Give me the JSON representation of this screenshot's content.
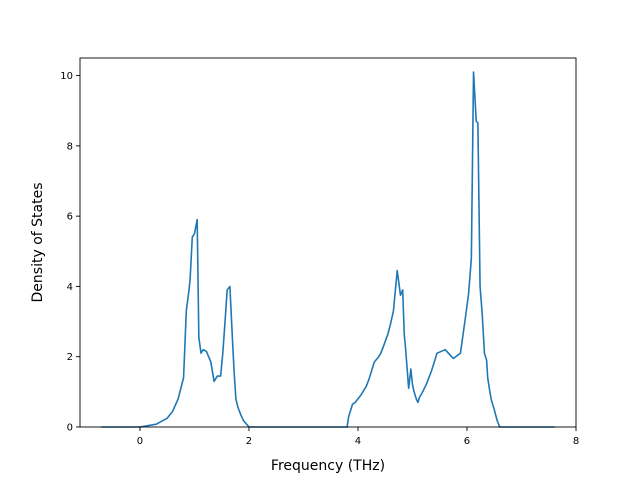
{
  "chart_data": {
    "type": "line",
    "title": "",
    "xlabel": "Frequency (THz)",
    "ylabel": "Density of States",
    "xlim": [
      -1.1,
      8.0
    ],
    "ylim": [
      0,
      10.5
    ],
    "x_ticks": [
      0,
      2,
      4,
      6,
      8
    ],
    "y_ticks": [
      0,
      2,
      4,
      6,
      8,
      10
    ],
    "x_tick_labels": [
      "0",
      "2",
      "4",
      "6",
      "8"
    ],
    "y_tick_labels": [
      "0",
      "2",
      "4",
      "6",
      "8",
      "10"
    ],
    "grid": false,
    "legend": "none",
    "series": [
      {
        "color": "#1f77b4",
        "x": [
          -0.7,
          0.0,
          0.3,
          0.5,
          0.6,
          0.7,
          0.8,
          0.85,
          0.9,
          0.92,
          0.96,
          1.0,
          1.05,
          1.08,
          1.12,
          1.16,
          1.22,
          1.3,
          1.36,
          1.42,
          1.48,
          1.52,
          1.57,
          1.6,
          1.65,
          1.7,
          1.73,
          1.76,
          1.8,
          1.85,
          1.9,
          2.0,
          2.1,
          2.2,
          3.0,
          3.8,
          3.83,
          3.9,
          3.95,
          4.05,
          4.15,
          4.2,
          4.3,
          4.38,
          4.42,
          4.48,
          4.55,
          4.6,
          4.65,
          4.72,
          4.78,
          4.82,
          4.85,
          4.87,
          4.9,
          4.93,
          4.97,
          5.0,
          5.03,
          5.07,
          5.1,
          5.13,
          5.17,
          5.25,
          5.35,
          5.45,
          5.6,
          5.75,
          5.88,
          5.97,
          6.03,
          6.08,
          6.12,
          6.17,
          6.2,
          6.24,
          6.28,
          6.32,
          6.36,
          6.38,
          6.42,
          6.45,
          6.5,
          6.55,
          6.6,
          6.7,
          6.8,
          6.9,
          6.95,
          7.0,
          7.6
        ],
        "y": [
          0.0,
          0.0,
          0.08,
          0.25,
          0.45,
          0.8,
          1.4,
          3.3,
          3.9,
          4.2,
          5.4,
          5.5,
          5.9,
          2.55,
          2.1,
          2.2,
          2.15,
          1.85,
          1.3,
          1.45,
          1.45,
          2.1,
          3.2,
          3.9,
          4.0,
          2.4,
          1.5,
          0.8,
          0.55,
          0.35,
          0.18,
          0.0,
          0.0,
          0.0,
          0.0,
          0.0,
          0.3,
          0.65,
          0.7,
          0.9,
          1.15,
          1.35,
          1.85,
          2.0,
          2.1,
          2.35,
          2.65,
          2.95,
          3.3,
          4.45,
          3.75,
          3.9,
          2.6,
          2.3,
          1.7,
          1.1,
          1.65,
          1.2,
          1.0,
          0.8,
          0.7,
          0.85,
          0.95,
          1.2,
          1.6,
          2.1,
          2.2,
          1.95,
          2.1,
          3.1,
          3.8,
          4.8,
          10.1,
          8.7,
          8.65,
          4.0,
          3.2,
          2.1,
          1.9,
          1.4,
          1.0,
          0.75,
          0.5,
          0.2,
          0.0,
          0.0,
          0.0,
          0.0,
          0.0,
          0.0,
          0.0
        ]
      }
    ]
  }
}
